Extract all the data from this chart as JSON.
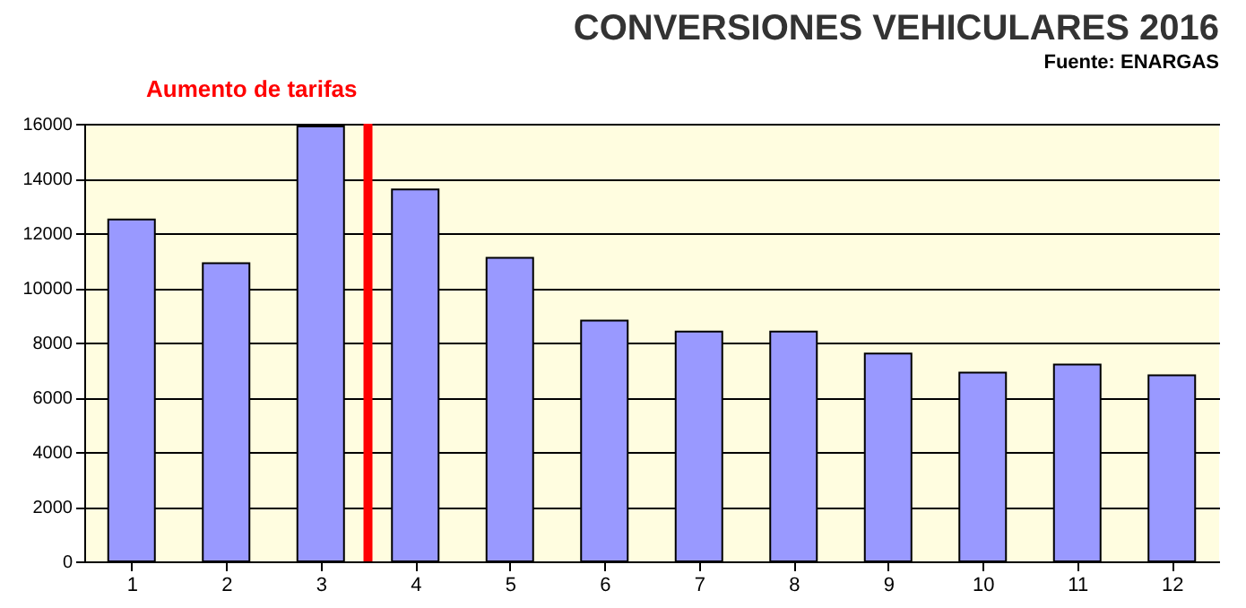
{
  "chart_data": {
    "type": "bar",
    "title": "CONVERSIONES VEHICULARES 2016",
    "subtitle": "Fuente: ENARGAS",
    "x": [
      1,
      2,
      3,
      4,
      5,
      6,
      7,
      8,
      9,
      10,
      11,
      12
    ],
    "xlim": [
      0.5,
      12.5
    ],
    "xticks": [
      1,
      2,
      3,
      4,
      5,
      6,
      7,
      8,
      9,
      10,
      11,
      12
    ],
    "values": [
      12500,
      10900,
      15900,
      13600,
      11100,
      8800,
      8400,
      8400,
      7600,
      6900,
      7200,
      6800
    ],
    "color": "#9999ff",
    "ylim": [
      0,
      16000
    ],
    "yticks": [
      0,
      2000,
      4000,
      6000,
      8000,
      10000,
      12000,
      14000,
      16000
    ],
    "grid": "y",
    "ref_lines": [
      {
        "axis": "x",
        "value": 3.5,
        "label": "Aumento de tarifas",
        "color": "#ff0000"
      }
    ]
  }
}
